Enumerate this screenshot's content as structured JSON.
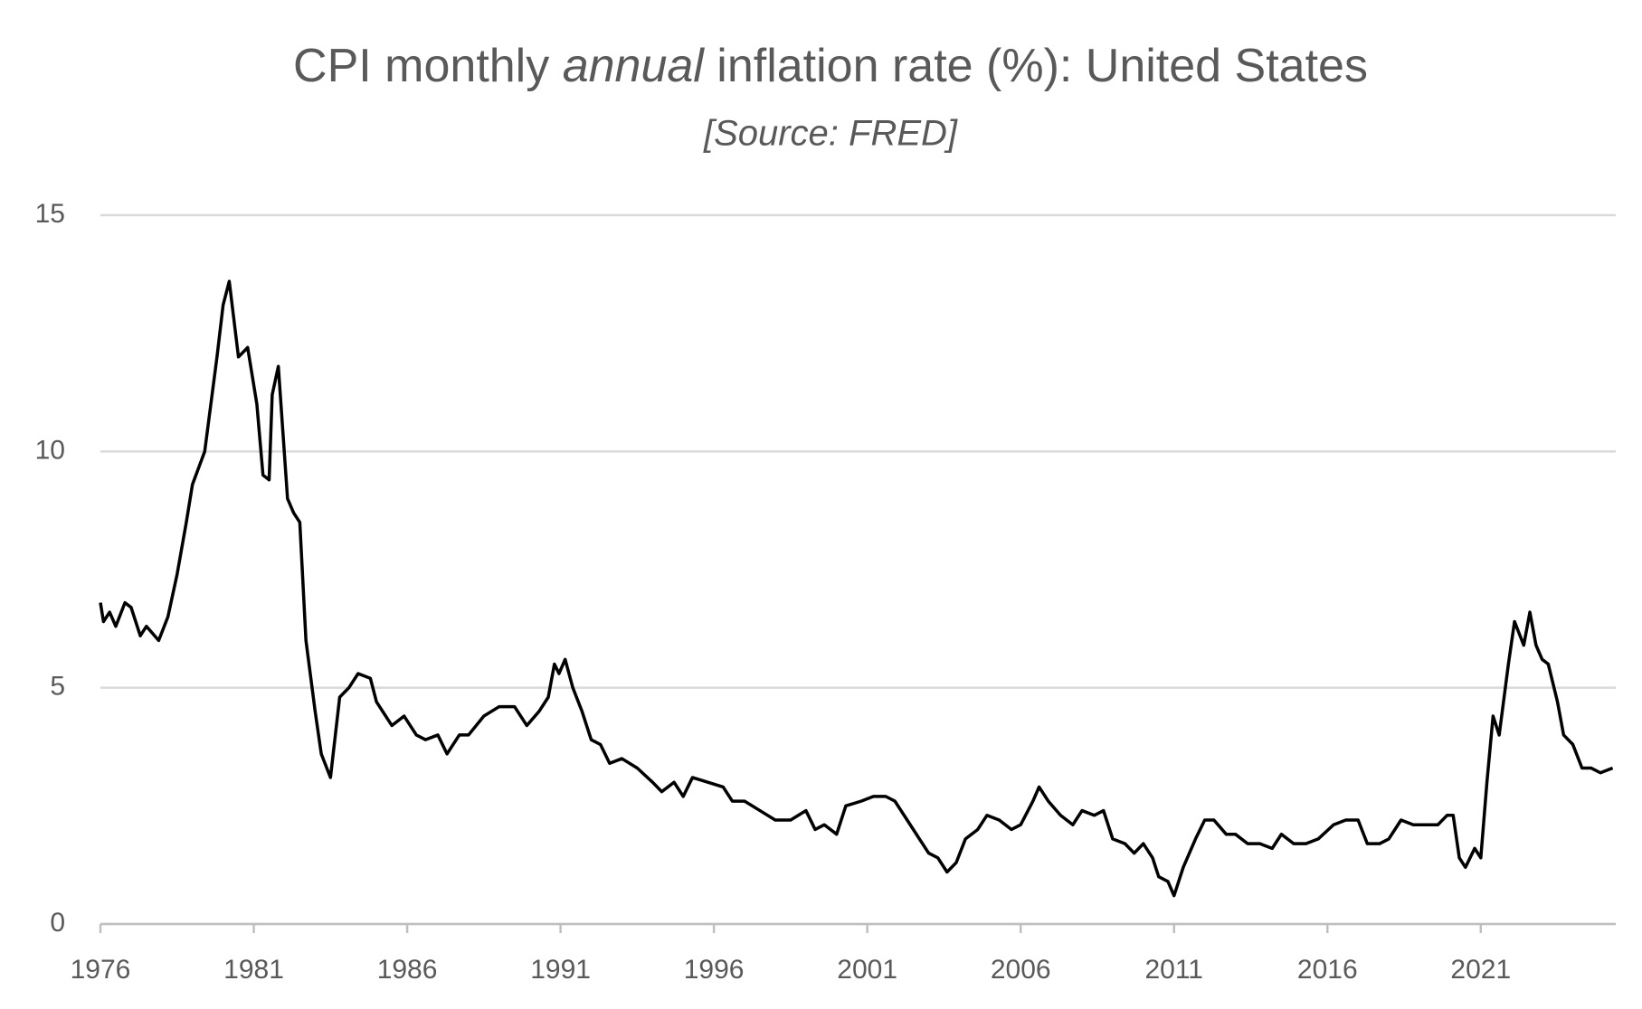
{
  "chart_data": {
    "type": "line",
    "title": [
      "CPI monthly ",
      "annual",
      " inflation rate (%): United States"
    ],
    "subtitle": "[Source: FRED]",
    "color": "#000000",
    "grid": true,
    "xlim": [
      1976,
      2025.4
    ],
    "xticks": [
      1976,
      1981,
      1986,
      1991,
      1996,
      2001,
      2006,
      2011,
      2016,
      2021
    ],
    "ylim": [
      0,
      15
    ],
    "yticks": [
      0,
      5,
      10,
      15
    ],
    "x": [
      1976.0,
      1976.1,
      1976.3,
      1976.5,
      1976.8,
      1977.0,
      1977.3,
      1977.5,
      1977.9,
      1978.2,
      1978.5,
      1978.8,
      1979.0,
      1979.4,
      1979.8,
      1980.0,
      1980.2,
      1980.5,
      1980.8,
      1981.1,
      1981.3,
      1981.5,
      1981.6,
      1981.8,
      1982.1,
      1982.3,
      1982.5,
      1982.7,
      1983.0,
      1983.2,
      1983.5,
      1983.8,
      1984.1,
      1984.4,
      1984.8,
      1985.0,
      1985.5,
      1985.9,
      1986.3,
      1986.6,
      1987.0,
      1987.3,
      1987.7,
      1988.0,
      1988.5,
      1989.0,
      1989.5,
      1989.9,
      1990.3,
      1990.6,
      1990.8,
      1990.95,
      1991.15,
      1991.4,
      1991.7,
      1992.0,
      1992.3,
      1992.6,
      1993.0,
      1993.5,
      1994.0,
      1994.3,
      1994.7,
      1995.0,
      1995.3,
      1995.8,
      1996.3,
      1996.6,
      1997.0,
      1997.5,
      1998.0,
      1998.5,
      1999.0,
      1999.3,
      1999.6,
      2000.0,
      2000.3,
      2000.8,
      2001.2,
      2001.6,
      2001.9,
      2002.3,
      2002.7,
      2003.0,
      2003.3,
      2003.6,
      2003.9,
      2004.2,
      2004.6,
      2004.9,
      2005.3,
      2005.7,
      2006.0,
      2006.4,
      2006.6,
      2006.9,
      2007.3,
      2007.7,
      2008.0,
      2008.4,
      2008.7,
      2009.0,
      2009.4,
      2009.7,
      2010.0,
      2010.3,
      2010.5,
      2010.8,
      2011.0,
      2011.3,
      2011.7,
      2012.0,
      2012.3,
      2012.7,
      2013.0,
      2013.4,
      2013.8,
      2014.2,
      2014.5,
      2014.9,
      2015.3,
      2015.7,
      2016.2,
      2016.6,
      2017.0,
      2017.3,
      2017.7,
      2018.0,
      2018.4,
      2018.8,
      2019.2,
      2019.6,
      2019.9,
      2020.1,
      2020.3,
      2020.5,
      2020.8,
      2021.0,
      2021.2,
      2021.4,
      2021.6,
      2021.9,
      2022.1,
      2022.4,
      2022.6,
      2022.8,
      2023.0,
      2023.2,
      2023.5,
      2023.7,
      2024.0,
      2024.3,
      2024.6,
      2024.9,
      2025.3
    ],
    "values": [
      6.8,
      6.4,
      6.6,
      6.3,
      6.8,
      6.7,
      6.1,
      6.3,
      6.0,
      6.5,
      7.4,
      8.5,
      9.3,
      10.0,
      12.0,
      13.1,
      13.6,
      12.0,
      12.2,
      11.0,
      9.5,
      9.4,
      11.2,
      11.8,
      9.0,
      8.7,
      8.5,
      6.0,
      4.5,
      3.6,
      3.1,
      4.8,
      5.0,
      5.3,
      5.2,
      4.7,
      4.2,
      4.4,
      4.0,
      3.9,
      4.0,
      3.6,
      4.0,
      4.0,
      4.4,
      4.6,
      4.6,
      4.2,
      4.5,
      4.8,
      5.5,
      5.3,
      5.6,
      5.0,
      4.5,
      3.9,
      3.8,
      3.4,
      3.5,
      3.3,
      3.0,
      2.8,
      3.0,
      2.7,
      3.1,
      3.0,
      2.9,
      2.6,
      2.6,
      2.4,
      2.2,
      2.2,
      2.4,
      2.0,
      2.1,
      1.9,
      2.5,
      2.6,
      2.7,
      2.7,
      2.6,
      2.2,
      1.8,
      1.5,
      1.4,
      1.1,
      1.3,
      1.8,
      2.0,
      2.3,
      2.2,
      2.0,
      2.1,
      2.6,
      2.9,
      2.6,
      2.3,
      2.1,
      2.4,
      2.3,
      2.4,
      1.8,
      1.7,
      1.5,
      1.7,
      1.4,
      1.0,
      0.9,
      0.6,
      1.2,
      1.8,
      2.2,
      2.2,
      1.9,
      1.9,
      1.7,
      1.7,
      1.6,
      1.9,
      1.7,
      1.7,
      1.8,
      2.1,
      2.2,
      2.2,
      1.7,
      1.7,
      1.8,
      2.2,
      2.1,
      2.1,
      2.1,
      2.3,
      2.3,
      1.4,
      1.2,
      1.6,
      1.4,
      3.0,
      4.4,
      4.0,
      5.5,
      6.4,
      5.9,
      6.6,
      5.9,
      5.6,
      5.5,
      4.7,
      4.0,
      3.8,
      3.3,
      3.3,
      3.2,
      3.3
    ]
  }
}
